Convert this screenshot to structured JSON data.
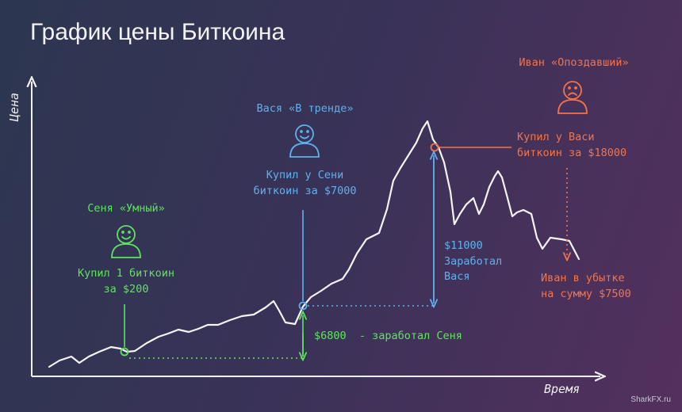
{
  "title": "График цены Биткоина",
  "axes": {
    "y_label": "Цена",
    "x_label": "Время"
  },
  "characters": {
    "senya": {
      "name": "Сеня «Умный»",
      "note1": "Купил 1 биткоин",
      "note2": "за $200",
      "color": "#5fe35f"
    },
    "vasya": {
      "name": "Вася «В тренде»",
      "note1": "Купил у Сени",
      "note2": "биткоин за $7000",
      "color": "#5fb1ee"
    },
    "ivan": {
      "name": "Иван «Опоздавший»",
      "note1": "Купил у Васи",
      "note2": "биткоин за $18000",
      "color": "#f2744a"
    }
  },
  "annotations": {
    "senya_profit": "$6800  - заработал Сеня",
    "vasya_profit1": "$11000",
    "vasya_profit2": "Заработал",
    "vasya_profit3": "Вася",
    "ivan_loss1": "Иван в убытке",
    "ivan_loss2": "на сумму $7500"
  },
  "watermark": "SharkFX.ru"
}
